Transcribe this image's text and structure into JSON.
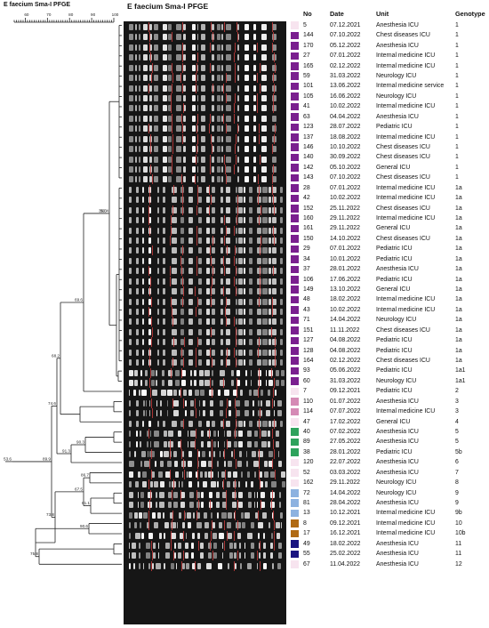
{
  "title": "E faecium Sma-I PFGE",
  "gel_title": "E faecium Sma-I PFGE",
  "scale": {
    "ticks": [
      "60",
      "70",
      "80",
      "90",
      "100"
    ],
    "min": 55,
    "max": 100
  },
  "columns": {
    "no": "No",
    "date": "Date",
    "unit": "Unit",
    "genotype": "Genotype"
  },
  "colors": {
    "purple": "#7a1f8f",
    "pink": "#d58ab5",
    "pale": "#f7e4ef",
    "green": "#2ea25c",
    "blue": "#8db2e0",
    "brown": "#b06a14",
    "navy": "#1a1580"
  },
  "node_labels": [
    "59.4",
    "36.3",
    "69.6",
    "68.2",
    "74.6",
    "89.9",
    "71.4",
    "90.3",
    "91.3",
    "86.7",
    "67.5",
    "61.1",
    "73.8",
    "90.6",
    "75.8",
    "53.6"
  ],
  "isolates": [
    {
      "no": "5",
      "date": "07.12.2021",
      "unit": "Anesthesia ICU",
      "genotype": "1",
      "color": "pale"
    },
    {
      "no": "144",
      "date": "07.10.2022",
      "unit": "Chest diseases ICU",
      "genotype": "1",
      "color": "purple"
    },
    {
      "no": "170",
      "date": "05.12.2022",
      "unit": "Anesthesia ICU",
      "genotype": "1",
      "color": "purple"
    },
    {
      "no": "27",
      "date": "07.01.2022",
      "unit": "Internal medicine ICU",
      "genotype": "1",
      "color": "purple"
    },
    {
      "no": "165",
      "date": "02.12.2022",
      "unit": "Internal medicine ICU",
      "genotype": "1",
      "color": "purple"
    },
    {
      "no": "59",
      "date": "31.03.2022",
      "unit": "Neurology ICU",
      "genotype": "1",
      "color": "purple"
    },
    {
      "no": "101",
      "date": "13.06.2022",
      "unit": "Internal medicine service",
      "genotype": "1",
      "color": "purple"
    },
    {
      "no": "105",
      "date": "16.06.2022",
      "unit": "Neurology ICU",
      "genotype": "1",
      "color": "purple"
    },
    {
      "no": "41",
      "date": "10.02.2022",
      "unit": "Internal medicine ICU",
      "genotype": "1",
      "color": "purple"
    },
    {
      "no": "63",
      "date": "04.04.2022",
      "unit": "Anesthesia ICU",
      "genotype": "1",
      "color": "purple"
    },
    {
      "no": "123",
      "date": "28.07.2022",
      "unit": "Pediatric ICU",
      "genotype": "1",
      "color": "purple"
    },
    {
      "no": "137",
      "date": "18.08.2022",
      "unit": "Internal medicine ICU",
      "genotype": "1",
      "color": "purple"
    },
    {
      "no": "146",
      "date": "10.10.2022",
      "unit": "Chest diseases ICU",
      "genotype": "1",
      "color": "purple"
    },
    {
      "no": "140",
      "date": "30.09.2022",
      "unit": "Chest diseases ICU",
      "genotype": "1",
      "color": "purple"
    },
    {
      "no": "142",
      "date": "05.10.2022",
      "unit": "General ICU",
      "genotype": "1",
      "color": "purple"
    },
    {
      "no": "143",
      "date": "07.10.2022",
      "unit": "Chest diseases ICU",
      "genotype": "1",
      "color": "purple"
    },
    {
      "no": "28",
      "date": "07.01.2022",
      "unit": "Internal medicine ICU",
      "genotype": "1a",
      "color": "purple"
    },
    {
      "no": "42",
      "date": "10.02.2022",
      "unit": "Internal medicine ICU",
      "genotype": "1a",
      "color": "purple"
    },
    {
      "no": "152",
      "date": "25.11.2022",
      "unit": "Chest diseases ICU",
      "genotype": "1a",
      "color": "purple"
    },
    {
      "no": "160",
      "date": "29.11.2022",
      "unit": "Internal medicine ICU",
      "genotype": "1a",
      "color": "purple"
    },
    {
      "no": "161",
      "date": "29.11.2022",
      "unit": "General ICU",
      "genotype": "1a",
      "color": "purple"
    },
    {
      "no": "150",
      "date": "14.10.2022",
      "unit": "Chest diseases ICU",
      "genotype": "1a",
      "color": "purple"
    },
    {
      "no": "29",
      "date": "07.01.2022",
      "unit": "Pediatric ICU",
      "genotype": "1a",
      "color": "purple"
    },
    {
      "no": "34",
      "date": "10.01.2022",
      "unit": "Pediatric ICU",
      "genotype": "1a",
      "color": "purple"
    },
    {
      "no": "37",
      "date": "28.01.2022",
      "unit": "Anesthesia ICU",
      "genotype": "1a",
      "color": "purple"
    },
    {
      "no": "106",
      "date": "17.06.2022",
      "unit": "Pediatric ICU",
      "genotype": "1a",
      "color": "purple"
    },
    {
      "no": "149",
      "date": "13.10.2022",
      "unit": "General ICU",
      "genotype": "1a",
      "color": "purple"
    },
    {
      "no": "48",
      "date": "18.02.2022",
      "unit": "Internal medicine ICU",
      "genotype": "1a",
      "color": "purple"
    },
    {
      "no": "43",
      "date": "10.02.2022",
      "unit": "Internal medicine ICU",
      "genotype": "1a",
      "color": "purple"
    },
    {
      "no": "71",
      "date": "14.04.2022",
      "unit": "Neurology ICU",
      "genotype": "1a",
      "color": "purple"
    },
    {
      "no": "151",
      "date": "11.11.2022",
      "unit": "Chest diseases ICU",
      "genotype": "1a",
      "color": "purple"
    },
    {
      "no": "127",
      "date": "04.08.2022",
      "unit": "Pediatric ICU",
      "genotype": "1a",
      "color": "purple"
    },
    {
      "no": "128",
      "date": "04.08.2022",
      "unit": "Pediatric ICU",
      "genotype": "1a",
      "color": "purple"
    },
    {
      "no": "164",
      "date": "02.12.2022",
      "unit": "Chest diseases ICU",
      "genotype": "1a",
      "color": "purple"
    },
    {
      "no": "93",
      "date": "05.06.2022",
      "unit": "Pediatric ICU",
      "genotype": "1a1",
      "color": "purple"
    },
    {
      "no": "60",
      "date": "31.03.2022",
      "unit": "Neurology ICU",
      "genotype": "1a1",
      "color": "purple"
    },
    {
      "no": "7",
      "date": "09.12.2021",
      "unit": "Pediatric ICU",
      "genotype": "2",
      "color": "pale"
    },
    {
      "no": "110",
      "date": "01.07.2022",
      "unit": "Anesthesia ICU",
      "genotype": "3",
      "color": "pink"
    },
    {
      "no": "114",
      "date": "07.07.2022",
      "unit": "Internal medicine ICU",
      "genotype": "3",
      "color": "pink"
    },
    {
      "no": "47",
      "date": "17.02.2022",
      "unit": "General ICU",
      "genotype": "4",
      "color": "pale"
    },
    {
      "no": "40",
      "date": "07.02.2022",
      "unit": "Anesthesia ICU",
      "genotype": "5",
      "color": "green"
    },
    {
      "no": "89",
      "date": "27.05.2022",
      "unit": "Anesthesia ICU",
      "genotype": "5",
      "color": "green"
    },
    {
      "no": "38",
      "date": "28.01.2022",
      "unit": "Pediatric ICU",
      "genotype": "5b",
      "color": "green"
    },
    {
      "no": "120",
      "date": "22.07.2022",
      "unit": "Anesthesia ICU",
      "genotype": "6",
      "color": "pale"
    },
    {
      "no": "52",
      "date": "03.03.2022",
      "unit": "Anesthesia ICU",
      "genotype": "7",
      "color": "pale"
    },
    {
      "no": "162",
      "date": "29.11.2022",
      "unit": "Neurology ICU",
      "genotype": "8",
      "color": "pale"
    },
    {
      "no": "72",
      "date": "14.04.2022",
      "unit": "Neurology ICU",
      "genotype": "9",
      "color": "blue"
    },
    {
      "no": "81",
      "date": "28.04.2022",
      "unit": "Anesthesia ICU",
      "genotype": "9",
      "color": "blue"
    },
    {
      "no": "13",
      "date": "10.12.2021",
      "unit": "Internal medicine ICU",
      "genotype": "9b",
      "color": "blue"
    },
    {
      "no": "8",
      "date": "09.12.2021",
      "unit": "Internal medicine ICU",
      "genotype": "10",
      "color": "brown"
    },
    {
      "no": "17",
      "date": "16.12.2021",
      "unit": "Internal medicine ICU",
      "genotype": "10b",
      "color": "brown"
    },
    {
      "no": "49",
      "date": "18.02.2022",
      "unit": "Anesthesia ICU",
      "genotype": "11",
      "color": "navy"
    },
    {
      "no": "55",
      "date": "25.02.2022",
      "unit": "Anesthesia ICU",
      "genotype": "11",
      "color": "navy"
    },
    {
      "no": "67",
      "date": "11.04.2022",
      "unit": "Anesthesia ICU",
      "genotype": "12",
      "color": "pale"
    }
  ]
}
